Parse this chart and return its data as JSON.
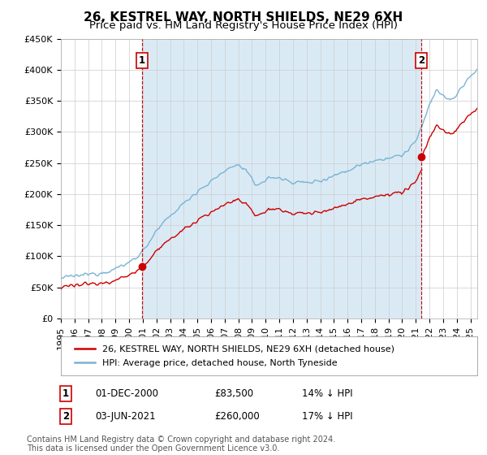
{
  "title": "26, KESTREL WAY, NORTH SHIELDS, NE29 6XH",
  "subtitle": "Price paid vs. HM Land Registry's House Price Index (HPI)",
  "ylim": [
    0,
    450000
  ],
  "yticks": [
    0,
    50000,
    100000,
    150000,
    200000,
    250000,
    300000,
    350000,
    400000,
    450000
  ],
  "ytick_labels": [
    "£0",
    "£50K",
    "£100K",
    "£150K",
    "£200K",
    "£250K",
    "£300K",
    "£350K",
    "£400K",
    "£450K"
  ],
  "hpi_color": "#7ab3d4",
  "hpi_fill_color": "#daeaf5",
  "price_color": "#cc0000",
  "annotation_color": "#cc0000",
  "purchase1_date": 2000.92,
  "purchase1_price": 83500,
  "purchase1_label": "1",
  "purchase2_date": 2021.42,
  "purchase2_price": 260000,
  "purchase2_label": "2",
  "legend_label1": "26, KESTREL WAY, NORTH SHIELDS, NE29 6XH (detached house)",
  "legend_label2": "HPI: Average price, detached house, North Tyneside",
  "annotation1_date": "01-DEC-2000",
  "annotation1_price": "£83,500",
  "annotation1_pct": "14% ↓ HPI",
  "annotation2_date": "03-JUN-2021",
  "annotation2_price": "£260,000",
  "annotation2_pct": "17% ↓ HPI",
  "footer": "Contains HM Land Registry data © Crown copyright and database right 2024.\nThis data is licensed under the Open Government Licence v3.0.",
  "title_fontsize": 11,
  "subtitle_fontsize": 9.5,
  "tick_fontsize": 8,
  "legend_fontsize": 8,
  "annotation_fontsize": 8.5,
  "footer_fontsize": 7,
  "background_color": "#ffffff",
  "grid_color": "#cccccc",
  "xlim_start": 1995,
  "xlim_end": 2025.5
}
